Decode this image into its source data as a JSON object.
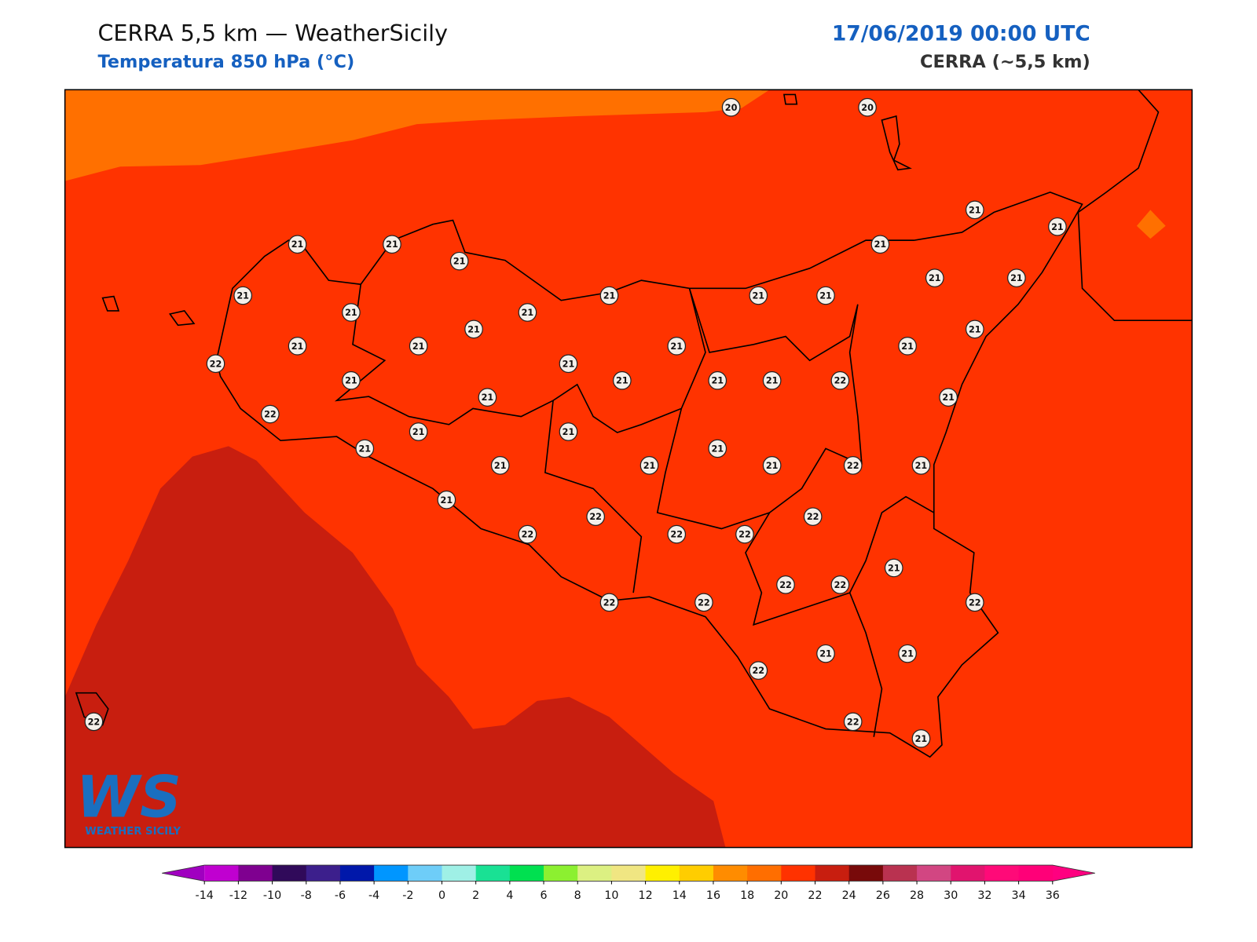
{
  "header": {
    "title": "CERRA 5,5 km — WeatherSicily",
    "subtitle": "Temperatura 850 hPa (°C)",
    "date": "17/06/2019 00:00 UTC",
    "model": "CERRA (~5,5 km)"
  },
  "logo": {
    "mark": "WS",
    "name": "WEATHER SICILY"
  },
  "station_values": [
    20,
    20,
    21,
    21,
    21,
    21,
    21,
    21,
    21,
    21,
    21,
    21,
    21,
    21,
    21,
    21,
    21,
    21,
    21,
    21,
    21,
    21,
    22,
    21,
    21,
    21,
    21,
    21,
    22,
    21,
    21,
    22,
    21,
    21,
    21,
    21,
    21,
    21,
    21,
    22,
    21,
    21,
    22,
    22,
    22,
    22,
    22,
    21,
    22,
    22,
    22,
    22,
    22,
    21,
    21,
    22,
    22,
    21,
    22
  ],
  "colorbar": {
    "ticks": [
      -14,
      -12,
      -10,
      -8,
      -6,
      -4,
      -2,
      0,
      2,
      4,
      6,
      8,
      10,
      12,
      14,
      16,
      18,
      20,
      22,
      24,
      26,
      28,
      30,
      32,
      34,
      36
    ],
    "colors": [
      "#c000d0",
      "#7f0090",
      "#300a5a",
      "#3c1f8c",
      "#0018aa",
      "#0096ff",
      "#6ecdf8",
      "#9ff0e6",
      "#19e194",
      "#00e050",
      "#8cf030",
      "#dcf082",
      "#f0e682",
      "#fff000",
      "#ffcd00",
      "#ff8c00",
      "#ff6e00",
      "#ff3200",
      "#c81e0f",
      "#780a0a",
      "#b93250",
      "#d24682",
      "#e1146e",
      "#ff0a78",
      "#ff0078"
    ],
    "under_color": "#a000c0",
    "over_color": "#ff0080"
  }
}
